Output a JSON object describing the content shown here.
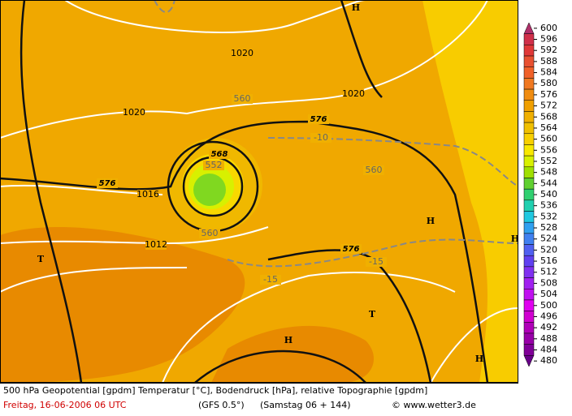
{
  "map": {
    "labels": [
      "1020",
      "1020",
      "1020",
      "560",
      "576",
      "-10",
      "568",
      "552",
      "576",
      "1016",
      "560",
      "1012",
      "560",
      "576",
      "-15",
      "-15",
      "H",
      "H",
      "H",
      "H",
      "H",
      "T",
      "T"
    ]
  },
  "legend": {
    "levels": [
      600,
      596,
      592,
      588,
      584,
      580,
      576,
      572,
      568,
      564,
      560,
      556,
      552,
      548,
      544,
      540,
      536,
      532,
      528,
      524,
      520,
      516,
      512,
      508,
      504,
      500,
      496,
      492,
      488,
      484,
      480
    ],
    "colors": [
      "#b0306a",
      "#d0304a",
      "#e03838",
      "#e85030",
      "#f06028",
      "#f07820",
      "#f08c10",
      "#f0a000",
      "#f0b000",
      "#f0c000",
      "#f8d000",
      "#f8e800",
      "#d8f000",
      "#a0e000",
      "#60d030",
      "#30d070",
      "#20d0b0",
      "#20c8e0",
      "#30a0f0",
      "#4080f0",
      "#5060f0",
      "#6040f0",
      "#8030f0",
      "#a020f0",
      "#c010f0",
      "#e000f0",
      "#d000d0",
      "#b000b8",
      "#9800a8",
      "#800098",
      "#680088"
    ]
  },
  "footer": {
    "description": "500 hPa Geopotential [gpdm] Temperatur [°C], Bodendruck [hPa], relative Topographie [gpdm]",
    "date": "Freitag, 16-06-2006  06 UTC",
    "model": "(GFS 0.5°)",
    "forecast": "(Samstag 06 + 144)",
    "credit": "© www.wetter3.de"
  }
}
